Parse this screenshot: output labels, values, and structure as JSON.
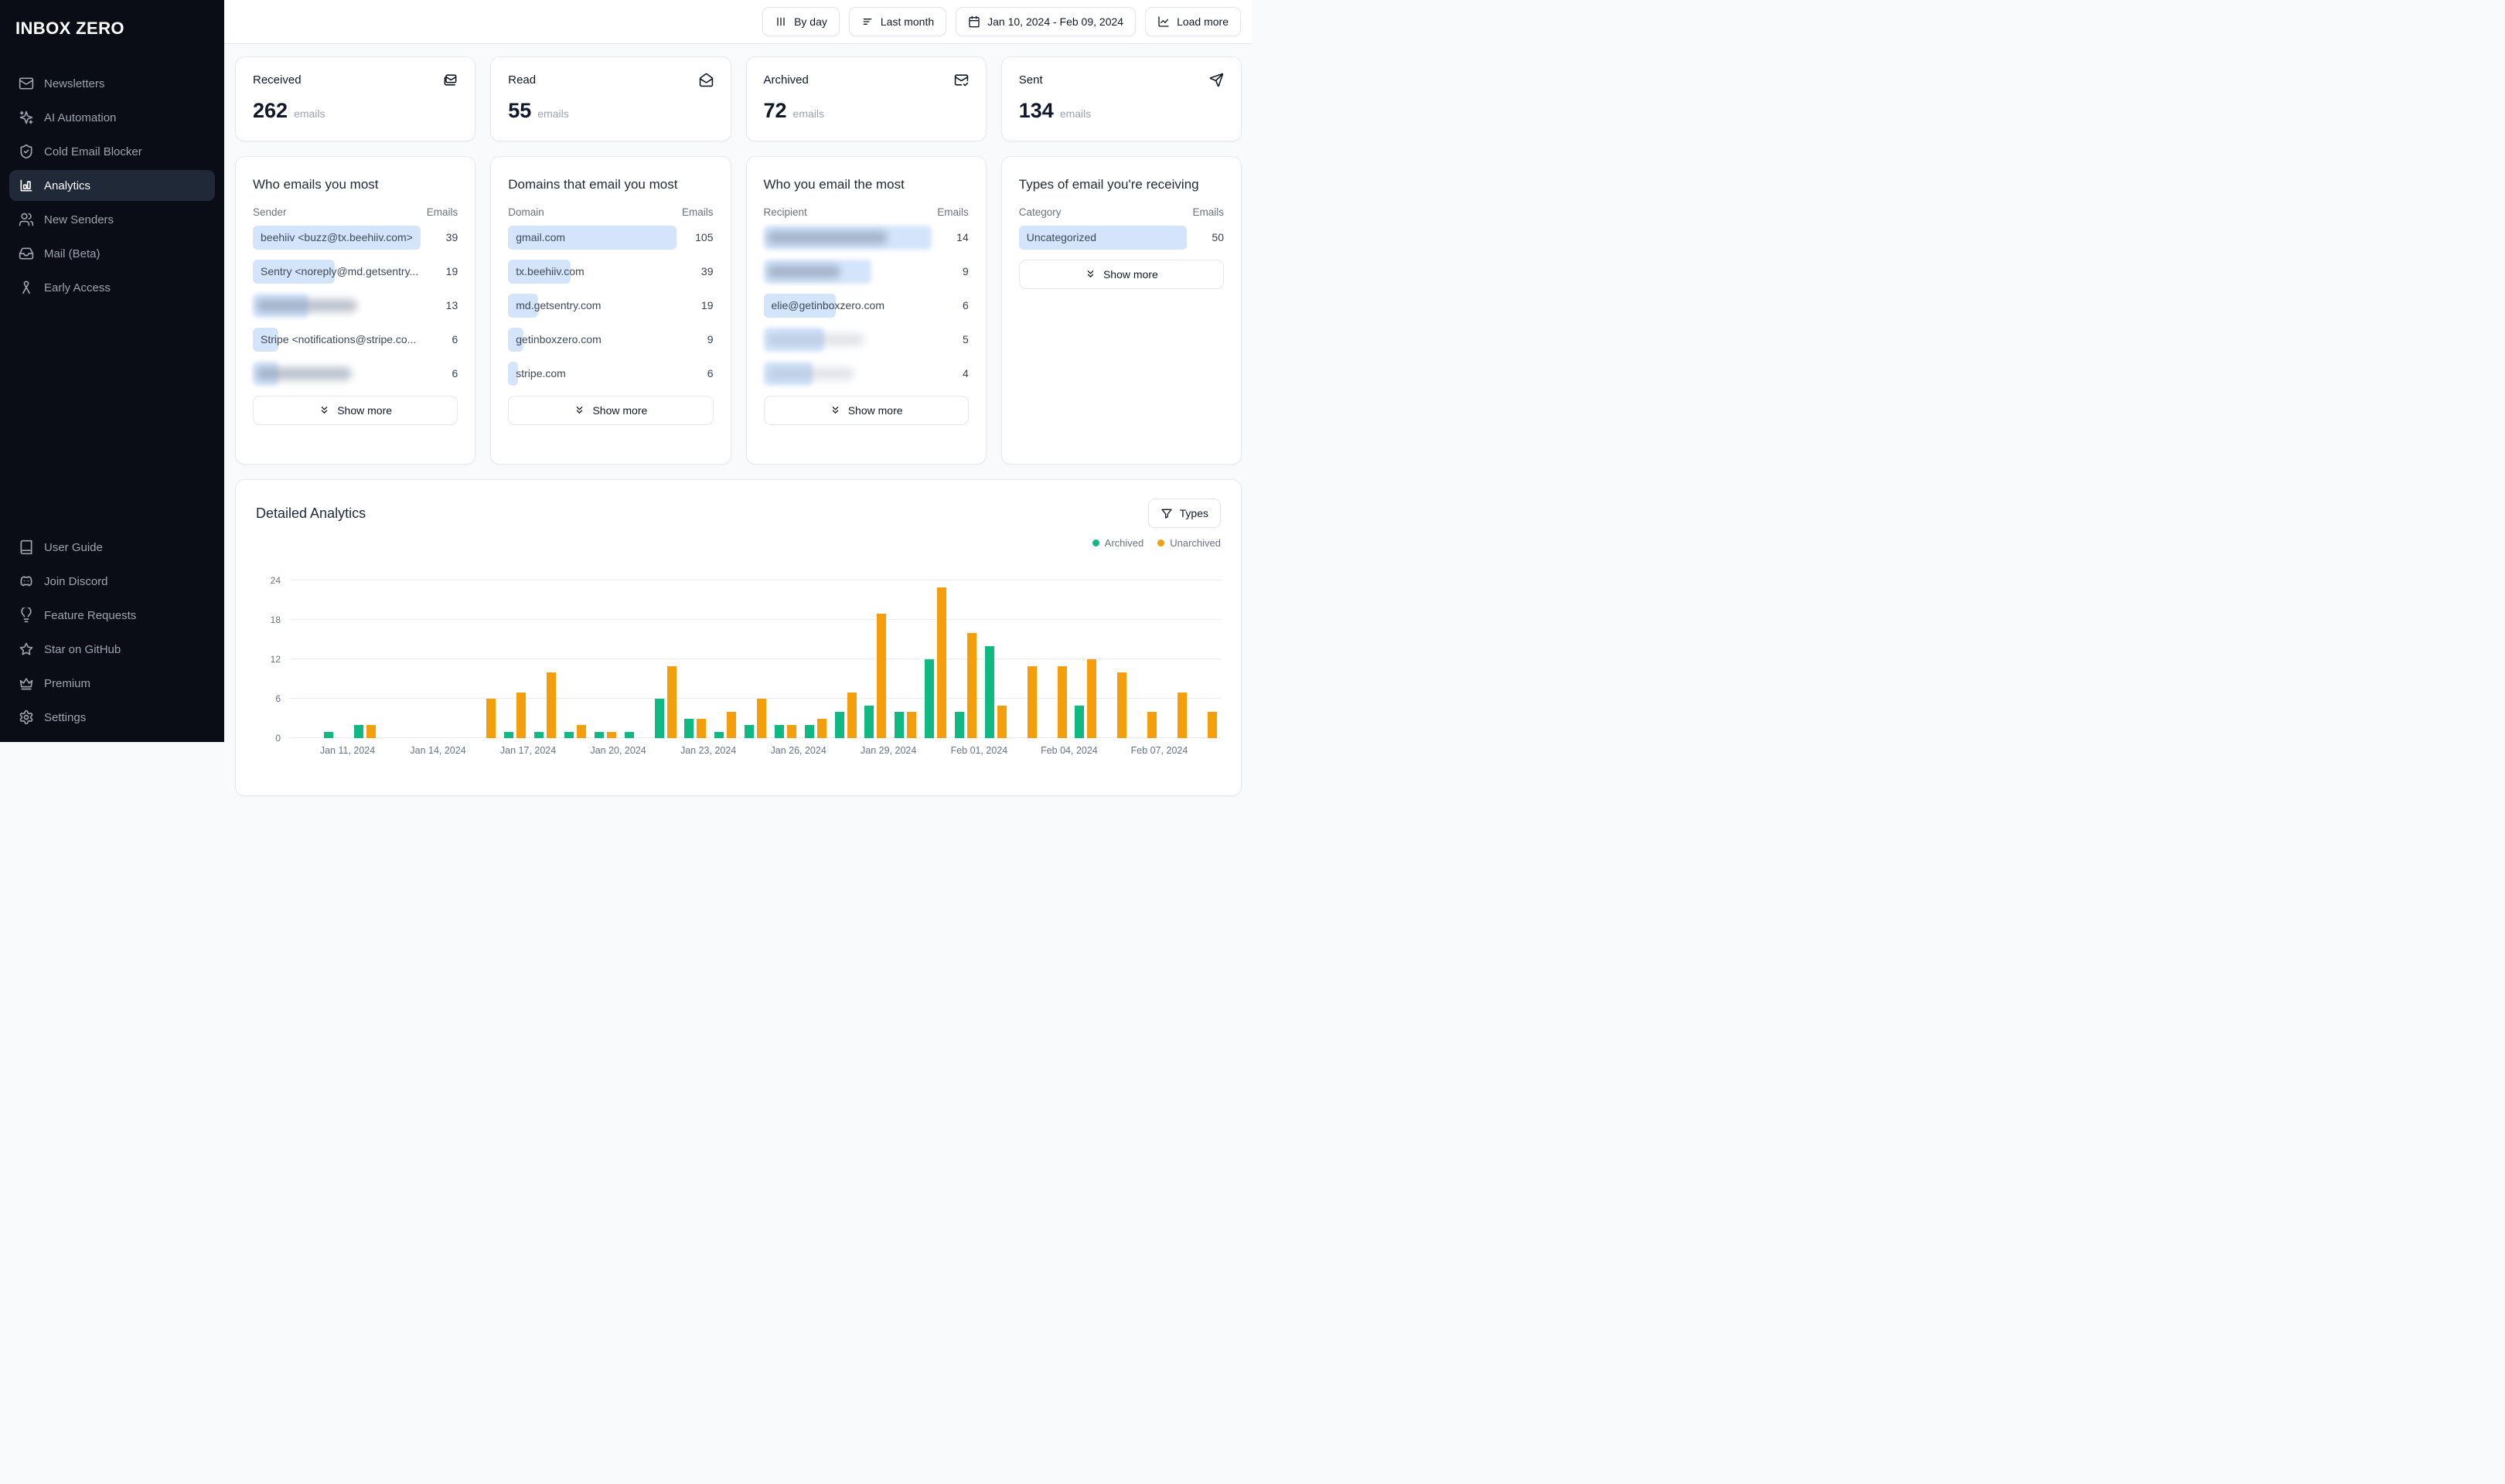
{
  "app": {
    "name": "INBOX ZERO"
  },
  "colors": {
    "table_bar": "#d4e4fb",
    "archived": "#10b981",
    "unarchived": "#f59e0b"
  },
  "sidebar": {
    "items": [
      {
        "label": "Newsletters",
        "icon": "mail-icon",
        "active": false
      },
      {
        "label": "AI Automation",
        "icon": "sparkles-icon",
        "active": false
      },
      {
        "label": "Cold Email Blocker",
        "icon": "shield-check-icon",
        "active": false
      },
      {
        "label": "Analytics",
        "icon": "bar-chart-icon",
        "active": true
      },
      {
        "label": "New Senders",
        "icon": "users-icon",
        "active": false
      },
      {
        "label": "Mail (Beta)",
        "icon": "inbox-icon",
        "active": false
      },
      {
        "label": "Early Access",
        "icon": "ribbon-icon",
        "active": false
      }
    ],
    "footer_items": [
      {
        "label": "User Guide",
        "icon": "book-icon"
      },
      {
        "label": "Join Discord",
        "icon": "discord-icon"
      },
      {
        "label": "Feature Requests",
        "icon": "lightbulb-icon"
      },
      {
        "label": "Star on GitHub",
        "icon": "star-icon"
      },
      {
        "label": "Premium",
        "icon": "crown-icon"
      },
      {
        "label": "Settings",
        "icon": "gear-icon"
      }
    ]
  },
  "topbar": {
    "buttons": [
      {
        "label": "By day",
        "icon": "column-chart-icon"
      },
      {
        "label": "Last month",
        "icon": "filter-lines-icon"
      },
      {
        "label": "Jan 10, 2024 - Feb 09, 2024",
        "icon": "calendar-icon"
      },
      {
        "label": "Load more",
        "icon": "load-chart-icon"
      }
    ]
  },
  "stats": [
    {
      "label": "Received",
      "value": "262",
      "unit": "emails",
      "icon": "mails-icon"
    },
    {
      "label": "Read",
      "value": "55",
      "unit": "emails",
      "icon": "mail-open-icon"
    },
    {
      "label": "Archived",
      "value": "72",
      "unit": "emails",
      "icon": "mail-check-icon"
    },
    {
      "label": "Sent",
      "value": "134",
      "unit": "emails",
      "icon": "send-icon"
    }
  ],
  "panels": [
    {
      "title": "Who emails you most",
      "col_label": "Sender",
      "value_label": "Emails",
      "show_more": "Show more",
      "rows": [
        {
          "label": "beehiiv <buzz@tx.beehiiv.com>",
          "value": "39",
          "bar_pct": 100,
          "redacted": false
        },
        {
          "label": "Sentry <noreply@md.getsentry....",
          "value": "19",
          "bar_pct": 49,
          "redacted": false
        },
        {
          "label": "",
          "value": "13",
          "bar_pct": 33,
          "redacted": true,
          "smear_pct": 60,
          "smear_light": false
        },
        {
          "label": "Stripe <notifications@stripe.co...",
          "value": "6",
          "bar_pct": 15,
          "redacted": false
        },
        {
          "label": "",
          "value": "6",
          "bar_pct": 15,
          "redacted": true,
          "smear_pct": 57,
          "smear_light": false
        }
      ]
    },
    {
      "title": "Domains that email you most",
      "col_label": "Domain",
      "value_label": "Emails",
      "show_more": "Show more",
      "rows": [
        {
          "label": "gmail.com",
          "value": "105",
          "bar_pct": 100,
          "redacted": false
        },
        {
          "label": "tx.beehiiv.com",
          "value": "39",
          "bar_pct": 37,
          "redacted": false
        },
        {
          "label": "md.getsentry.com",
          "value": "19",
          "bar_pct": 18,
          "redacted": false
        },
        {
          "label": "getinboxzero.com",
          "value": "9",
          "bar_pct": 9,
          "redacted": false
        },
        {
          "label": "stripe.com",
          "value": "6",
          "bar_pct": 6,
          "redacted": false
        }
      ]
    },
    {
      "title": "Who you email the most",
      "col_label": "Recipient",
      "value_label": "Emails",
      "show_more": "Show more",
      "rows": [
        {
          "label": "",
          "value": "14",
          "bar_pct": 100,
          "redacted": true,
          "smear_pct": 72,
          "smear_light": false
        },
        {
          "label": "",
          "value": "9",
          "bar_pct": 64,
          "redacted": true,
          "smear_pct": 44,
          "smear_light": false
        },
        {
          "label": "elie@getinboxzero.com",
          "value": "6",
          "bar_pct": 43,
          "redacted": false
        },
        {
          "label": "",
          "value": "5",
          "bar_pct": 36,
          "redacted": true,
          "smear_pct": 58,
          "smear_light": true
        },
        {
          "label": "",
          "value": "4",
          "bar_pct": 29,
          "redacted": true,
          "smear_pct": 52,
          "smear_light": true
        }
      ]
    },
    {
      "title": "Types of email you're receiving",
      "col_label": "Category",
      "value_label": "Emails",
      "show_more": "Show more",
      "rows": [
        {
          "label": "Uncategorized",
          "value": "50",
          "bar_pct": 100,
          "redacted": false
        }
      ]
    }
  ],
  "detailed": {
    "title": "Detailed Analytics",
    "filter_button": "Types",
    "legend": [
      {
        "label": "Archived",
        "color": "#10b981"
      },
      {
        "label": "Unarchived",
        "color": "#f59e0b"
      }
    ]
  },
  "chart_data": {
    "type": "bar",
    "title": "Detailed Analytics",
    "xlabel": "",
    "ylabel": "",
    "ylim": [
      0,
      24
    ],
    "yticks": [
      0,
      6,
      12,
      18,
      24
    ],
    "grid": true,
    "legend_position": "top-right",
    "x": [
      "Jan 10, 2024",
      "Jan 11, 2024",
      "Jan 12, 2024",
      "Jan 13, 2024",
      "Jan 14, 2024",
      "Jan 15, 2024",
      "Jan 16, 2024",
      "Jan 17, 2024",
      "Jan 18, 2024",
      "Jan 19, 2024",
      "Jan 20, 2024",
      "Jan 21, 2024",
      "Jan 22, 2024",
      "Jan 23, 2024",
      "Jan 24, 2024",
      "Jan 25, 2024",
      "Jan 26, 2024",
      "Jan 27, 2024",
      "Jan 28, 2024",
      "Jan 29, 2024",
      "Jan 30, 2024",
      "Jan 31, 2024",
      "Feb 01, 2024",
      "Feb 02, 2024",
      "Feb 03, 2024",
      "Feb 04, 2024",
      "Feb 05, 2024",
      "Feb 06, 2024",
      "Feb 07, 2024",
      "Feb 08, 2024",
      "Feb 09, 2024"
    ],
    "xtick_labels": [
      "Jan 11, 2024",
      "Jan 14, 2024",
      "Jan 17, 2024",
      "Jan 20, 2024",
      "Jan 23, 2024",
      "Jan 26, 2024",
      "Jan 29, 2024",
      "Feb 01, 2024",
      "Feb 04, 2024",
      "Feb 07, 2024"
    ],
    "series": [
      {
        "name": "Archived",
        "color": "#10b981",
        "values": [
          0,
          1,
          2,
          0,
          0,
          0,
          0,
          1,
          1,
          1,
          1,
          1,
          6,
          3,
          1,
          2,
          2,
          2,
          4,
          5,
          4,
          12,
          4,
          14,
          0,
          0,
          5,
          0,
          0,
          0,
          0
        ]
      },
      {
        "name": "Unarchived",
        "color": "#f59e0b",
        "values": [
          0,
          0,
          2,
          0,
          0,
          0,
          6,
          7,
          10,
          2,
          1,
          0,
          11,
          3,
          4,
          6,
          2,
          3,
          7,
          19,
          4,
          23,
          16,
          5,
          11,
          11,
          12,
          10,
          4,
          7,
          4
        ]
      }
    ]
  }
}
